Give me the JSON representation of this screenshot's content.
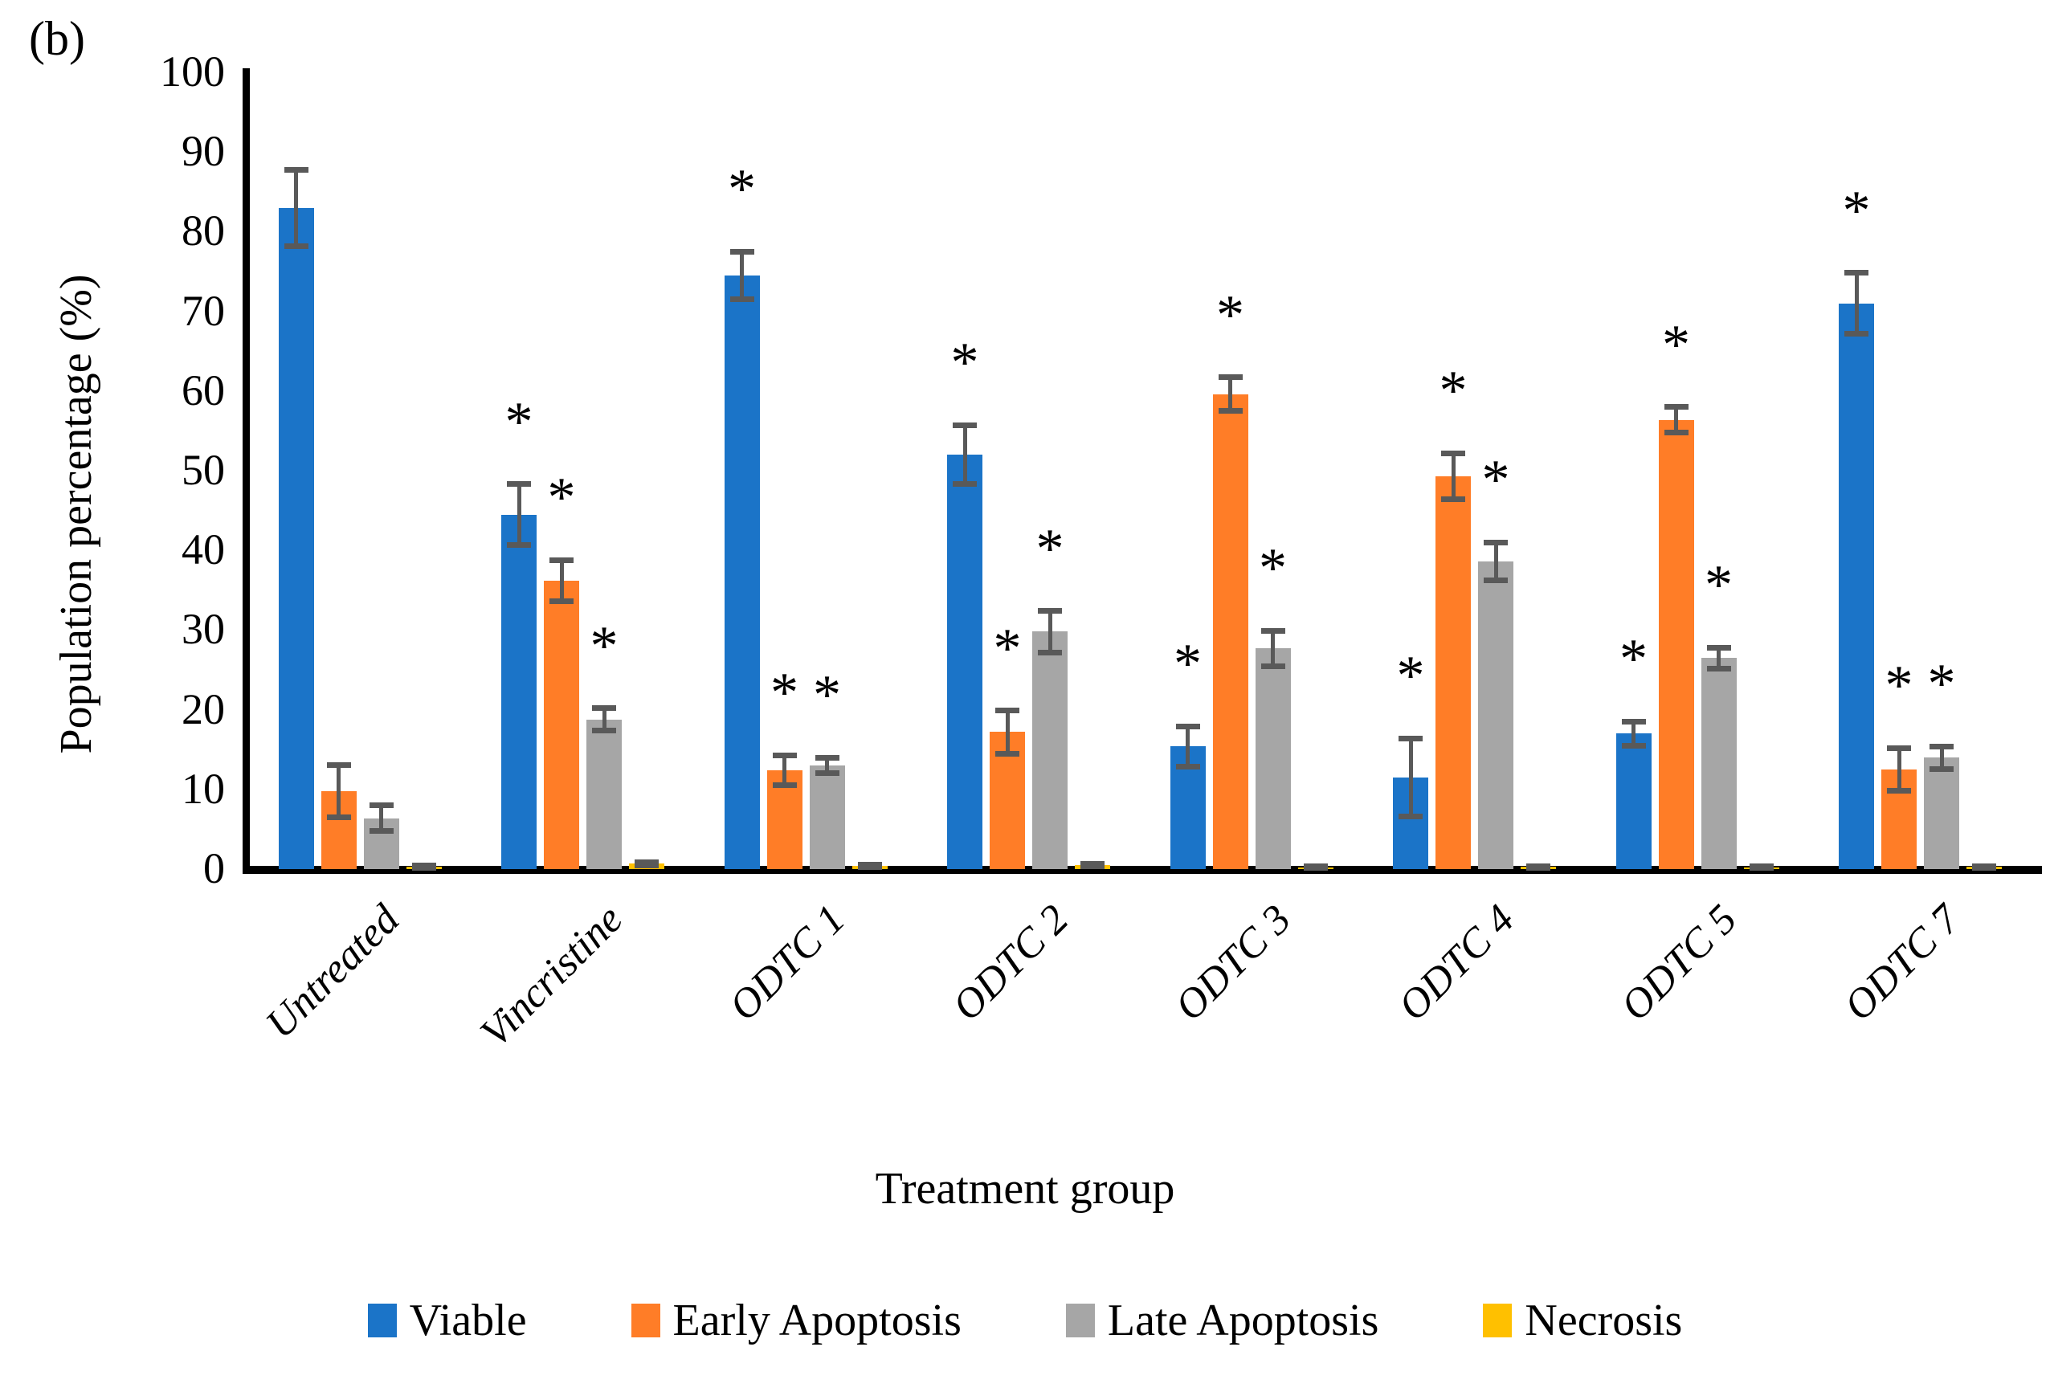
{
  "figure_label": "(b)",
  "significance_marker": "*",
  "y_axis": {
    "title": "Population percentage (%)",
    "ticks": [
      100,
      90,
      80,
      70,
      60,
      50,
      40,
      30,
      20,
      10,
      0
    ],
    "min": 0,
    "max": 100
  },
  "x_axis": {
    "title": "Treatment group",
    "categories": [
      "Untreated",
      "Vincristine",
      "ODTC 1",
      "ODTC 2",
      "ODTC 3",
      "ODTC 4",
      "ODTC 5",
      "ODTC 7"
    ]
  },
  "legend": {
    "position": "bottom",
    "items": [
      {
        "label": "Viable",
        "color": "#1B74C8"
      },
      {
        "label": "Early Apoptosis",
        "color": "#FF7D27"
      },
      {
        "label": "Late Apoptosis",
        "color": "#A6A6A6"
      },
      {
        "label": "Necrosis",
        "color": "#FFC000"
      }
    ]
  },
  "colors": {
    "error_bar": "#595959",
    "axis": "#000000",
    "background": "#FFFFFF"
  },
  "chart_data": {
    "type": "bar",
    "title": "",
    "xlabel": "Treatment group",
    "ylabel": "Population percentage (%)",
    "ylim": [
      0,
      100
    ],
    "grid": false,
    "legend_position": "bottom",
    "categories": [
      "Untreated",
      "Vincristine",
      "ODTC 1",
      "ODTC 2",
      "ODTC 3",
      "ODTC 4",
      "ODTC 5",
      "ODTC 7"
    ],
    "series": [
      {
        "name": "Viable",
        "color": "#1B74C8",
        "values": [
          83.0,
          44.5,
          74.5,
          52.0,
          15.4,
          11.5,
          17.0,
          71.0
        ],
        "errors": [
          4.8,
          3.8,
          3.0,
          3.7,
          2.5,
          4.9,
          1.5,
          3.8
        ],
        "significant": [
          false,
          true,
          true,
          true,
          true,
          true,
          true,
          true
        ]
      },
      {
        "name": "Early Apoptosis",
        "color": "#FF7D27",
        "values": [
          9.8,
          36.2,
          12.4,
          17.2,
          59.6,
          49.3,
          56.4,
          12.5
        ],
        "errors": [
          3.3,
          2.6,
          1.9,
          2.7,
          2.1,
          2.9,
          1.6,
          2.7
        ],
        "significant": [
          false,
          true,
          true,
          true,
          true,
          true,
          true,
          true
        ]
      },
      {
        "name": "Late Apoptosis",
        "color": "#A6A6A6",
        "values": [
          6.4,
          18.8,
          13.0,
          29.8,
          27.7,
          38.6,
          26.5,
          14.0
        ],
        "errors": [
          1.6,
          1.4,
          1.0,
          2.6,
          2.2,
          2.4,
          1.3,
          1.4
        ],
        "significant": [
          false,
          true,
          true,
          true,
          true,
          true,
          true,
          true
        ]
      },
      {
        "name": "Necrosis",
        "color": "#FFC000",
        "values": [
          0.3,
          0.7,
          0.4,
          0.5,
          0.25,
          0.3,
          0.25,
          0.3
        ],
        "errors": [
          0.15,
          0.2,
          0.15,
          0.15,
          0.1,
          0.1,
          0.1,
          0.1
        ],
        "significant": [
          false,
          false,
          false,
          false,
          false,
          false,
          false,
          false
        ]
      }
    ]
  }
}
